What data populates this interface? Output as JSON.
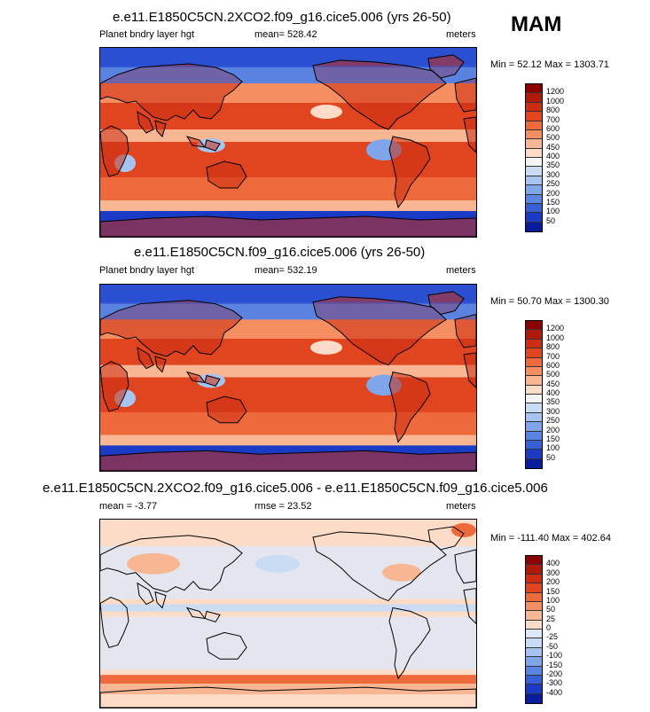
{
  "season": "MAM",
  "panels": [
    {
      "title": "e.e11.E1850C5CN.2XCO2.f09_g16.cice5.006 (yrs 26-50)",
      "left_label": "Planet bndry layer hgt",
      "center_label": "mean= 528.42",
      "right_label": "meters",
      "minmax": "Min =  52.12 Max = 1303.71",
      "colorbar": {
        "labels": [
          "1200",
          "1000",
          "800",
          "700",
          "600",
          "500",
          "450",
          "400",
          "350",
          "300",
          "250",
          "200",
          "150",
          "100",
          "50"
        ],
        "colors": [
          "#8b0000",
          "#b01a0a",
          "#cc2d12",
          "#e0451f",
          "#ef6a3a",
          "#f58e60",
          "#f9b693",
          "#fcdcc6",
          "#f5f5f5",
          "#c9dcf3",
          "#a6c4ef",
          "#7fa6eb",
          "#5a86e3",
          "#3560d8",
          "#1a3bc6",
          "#081c9c"
        ]
      },
      "map_style": "pblh"
    },
    {
      "title": "e.e11.E1850C5CN.f09_g16.cice5.006 (yrs 26-50)",
      "left_label": "Planet bndry layer hgt",
      "center_label": "mean= 532.19",
      "right_label": "meters",
      "minmax": "Min =  50.70 Max = 1300.30",
      "colorbar": {
        "labels": [
          "1200",
          "1000",
          "800",
          "700",
          "600",
          "500",
          "450",
          "400",
          "350",
          "300",
          "250",
          "200",
          "150",
          "100",
          "50"
        ],
        "colors": [
          "#8b0000",
          "#b01a0a",
          "#cc2d12",
          "#e0451f",
          "#ef6a3a",
          "#f58e60",
          "#f9b693",
          "#fcdcc6",
          "#f5f5f5",
          "#c9dcf3",
          "#a6c4ef",
          "#7fa6eb",
          "#5a86e3",
          "#3560d8",
          "#1a3bc6",
          "#081c9c"
        ]
      },
      "map_style": "pblh"
    },
    {
      "title": "e.e11.E1850C5CN.2XCO2.f09_g16.cice5.006 - e.e11.E1850C5CN.f09_g16.cice5.006",
      "left_label": "mean =  -3.77",
      "center_label": "rmse =  23.52",
      "right_label": "meters",
      "minmax": "Min = -111.40 Max = 402.64",
      "colorbar": {
        "labels": [
          "400",
          "300",
          "200",
          "150",
          "100",
          "50",
          "25",
          "0",
          "-25",
          "-50",
          "-100",
          "-150",
          "-200",
          "-300",
          "-400"
        ],
        "colors": [
          "#8b0000",
          "#b01a0a",
          "#cc2d12",
          "#e0451f",
          "#ef6a3a",
          "#f58e60",
          "#f9b693",
          "#fcdcc6",
          "#dce8f8",
          "#c9dcf3",
          "#a6c4ef",
          "#7fa6eb",
          "#5a86e3",
          "#3560d8",
          "#1a3bc6",
          "#081c9c"
        ]
      },
      "map_style": "diff"
    }
  ]
}
